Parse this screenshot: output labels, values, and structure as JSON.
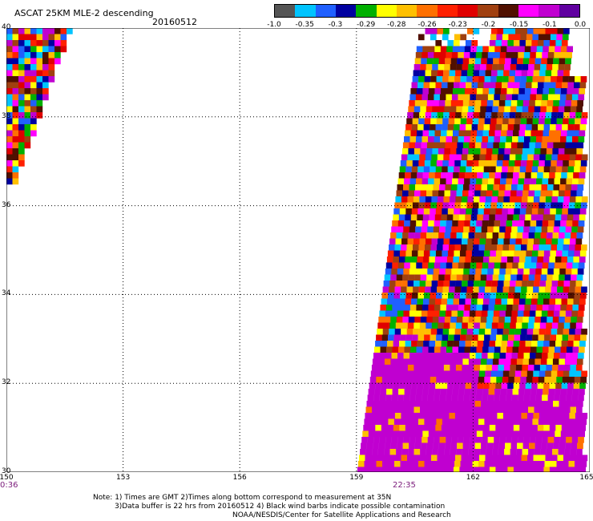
{
  "header": {
    "title": "ASCAT 25KM MLE-2 descending",
    "date": "20160512"
  },
  "colorbar": {
    "colors": [
      "#555555",
      "#00c4ff",
      "#2060ff",
      "#0000a0",
      "#00b000",
      "#ffff00",
      "#ffc000",
      "#ff7000",
      "#ff2000",
      "#e00000",
      "#a04010",
      "#501000",
      "#ff00ff",
      "#c000d0",
      "#6000a0"
    ],
    "ticks": [
      "-1.0",
      "-0.35",
      "-0.3",
      "-0.29",
      "-0.28",
      "-0.26",
      "-0.23",
      "-0.2",
      "-0.15",
      "-0.1",
      "0.0"
    ]
  },
  "map": {
    "lat_labels": [
      "40",
      "38",
      "36",
      "34",
      "32",
      "30"
    ],
    "lon_labels": [
      "150",
      "153",
      "156",
      "159",
      "162",
      "165"
    ],
    "lat_range": [
      30,
      40
    ],
    "lon_range": [
      150,
      165
    ],
    "grid": "dotted",
    "start_time": "0:36",
    "pass_time": "22:35",
    "background_value_color": "#c000d0"
  },
  "footer": {
    "line1": "Note: 1) Times are GMT 2)Times along bottom correspond to measurement at 35N",
    "line2": "3)Data buffer is 22 hrs from 20160512 4) Black wind barbs indicate possible contamination",
    "line3": "NOAA/NESDIS/Center for Satellite Applications and Research"
  }
}
